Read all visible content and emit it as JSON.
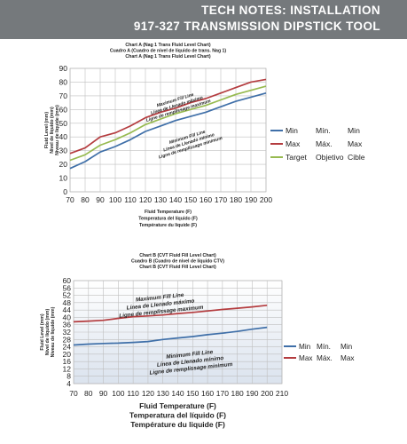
{
  "header": {
    "line1": "TECH NOTES: INSTALLATION",
    "line2": "917-327 TRANSMISSION DIPSTICK TOOL"
  },
  "colors": {
    "header_bg": "#75797c",
    "min": "#3f6fa8",
    "max": "#b43c3f",
    "target": "#97ba50",
    "grid": "#bfbfbf",
    "plot_bg_a": "#ffffff",
    "plot_bg_b": "#dbe3ee"
  },
  "chart_data": [
    {
      "type": "line",
      "title": [
        "Chart A (Nag 1 Trans Fluid Level Chart)",
        "Cuadro A (Cuadro de nivel de líquido de trans. Nag 1)",
        "Chart A (Nag 1 Trans Fluid Level Chart)"
      ],
      "ylabel": [
        "Fluid Level (mm)",
        "Nivel de líquido (mm)",
        "Niveau de liquide (mm)"
      ],
      "xlabel": [
        "Fluid Temperature (F)",
        "Temperatura del líquido (F)",
        "Température du liquide (F)"
      ],
      "x": [
        70,
        80,
        90,
        100,
        110,
        120,
        130,
        140,
        150,
        160,
        170,
        180,
        190,
        200
      ],
      "xlim": [
        70,
        200
      ],
      "ylim": [
        0,
        90
      ],
      "yticks": [
        0,
        10,
        20,
        30,
        40,
        50,
        60,
        70,
        80,
        90
      ],
      "grid": true,
      "legend_position": "right",
      "series": [
        {
          "key": "min",
          "name": "Min",
          "translations": [
            "Mín.",
            "Min"
          ],
          "values": [
            17,
            22,
            29,
            33,
            38,
            44,
            48,
            52,
            55,
            58,
            62,
            66,
            69,
            72
          ]
        },
        {
          "key": "max",
          "name": "Max",
          "translations": [
            "Máx.",
            "Max"
          ],
          "values": [
            28,
            32,
            40,
            43,
            48,
            54,
            58,
            61,
            65,
            68,
            72,
            76,
            80,
            82
          ]
        },
        {
          "key": "target",
          "name": "Target",
          "translations": [
            "Objetivo",
            "Cible"
          ],
          "values": [
            23,
            27,
            34,
            38,
            43,
            49,
            53,
            57,
            60,
            63,
            67,
            71,
            74,
            77
          ]
        }
      ],
      "annotations": [
        {
          "lines": [
            "Maximum Fill Line",
            "Línea de Llenado máximo",
            "Ligne de remplissage maximum"
          ],
          "at": [
            140,
            66
          ]
        },
        {
          "lines": [
            "Minimum Fill Line",
            "Línea de Llenado mínimo",
            "Ligne de remplissage minimum"
          ],
          "at": [
            148,
            39
          ]
        }
      ]
    },
    {
      "type": "line",
      "title": [
        "Chart B (CVT Fluid Fill Level Chart)",
        "Cuadro B (Cuadro de nivel de líquido CTV)",
        "Chart B (CVT Fluid Fill Level Chart)"
      ],
      "ylabel": [
        "Fluid Level (mm)",
        "Nivel de líquido (mm)",
        "Niveau de liquide (mm)"
      ],
      "xlabel": [
        "Fluid Temperature (F)",
        "Temperatura del líquido (F)",
        "Température du liquide (F)"
      ],
      "x": [
        70,
        80,
        90,
        100,
        110,
        120,
        130,
        140,
        150,
        160,
        170,
        180,
        190,
        200
      ],
      "xticks": [
        70,
        80,
        90,
        100,
        110,
        120,
        130,
        140,
        150,
        160,
        170,
        180,
        190,
        200,
        210
      ],
      "xlim": [
        70,
        210
      ],
      "ylim": [
        4,
        60
      ],
      "yticks": [
        4,
        8,
        12,
        16,
        20,
        24,
        28,
        32,
        36,
        40,
        44,
        48,
        52,
        56,
        60
      ],
      "grid": true,
      "legend_position": "right",
      "series": [
        {
          "key": "min",
          "name": "Min",
          "translations": [
            "Mín.",
            "Min"
          ],
          "values": [
            25,
            25.5,
            25.8,
            26,
            26.4,
            26.9,
            28,
            28.8,
            29.6,
            30.6,
            31.4,
            32.4,
            33.6,
            34.6
          ]
        },
        {
          "key": "max",
          "name": "Max",
          "translations": [
            "Máx.",
            "Max"
          ],
          "values": [
            37.6,
            38,
            38.4,
            39.5,
            40.4,
            40.8,
            41.3,
            42.1,
            42.7,
            43.5,
            44.3,
            45,
            45.7,
            46.6
          ]
        }
      ],
      "annotations": [
        {
          "lines": [
            "Maximum Fill Line",
            "Línea de Llenado máximo",
            "Ligne de remplissage maximum"
          ],
          "at": [
            128,
            50
          ]
        },
        {
          "lines": [
            "Minimum Fill Line",
            "Línea de Llenado mínimo",
            "Ligne de remplissage minimum"
          ],
          "at": [
            148,
            19
          ]
        }
      ]
    }
  ]
}
